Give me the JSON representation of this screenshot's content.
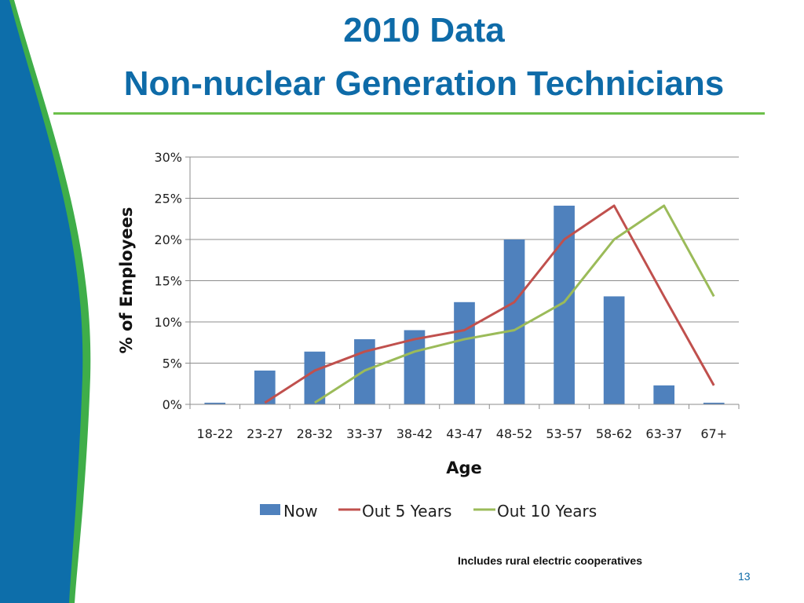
{
  "slide": {
    "title_line1": "2010 Data",
    "title_line2": "Non-nuclear Generation Technicians",
    "footnote": "Includes rural electric cooperatives",
    "page_number": "13",
    "colors": {
      "title": "#0e6ba8",
      "rule": "#6cc04a",
      "wave_blue": "#0d6eaa",
      "wave_green": "#3fae49"
    }
  },
  "chart_data": {
    "type": "bar",
    "xlabel": "Age",
    "ylabel": "% of Employees",
    "ylim": [
      0,
      30
    ],
    "y_ticks": [
      "0%",
      "5%",
      "10%",
      "15%",
      "20%",
      "25%",
      "30%"
    ],
    "categories": [
      "18-22",
      "23-27",
      "28-32",
      "33-37",
      "38-42",
      "43-47",
      "48-52",
      "53-57",
      "58-62",
      "63-37",
      "67+"
    ],
    "series": [
      {
        "name": "Now",
        "type": "bar",
        "color": "#4f81bd",
        "values": [
          0.2,
          4.1,
          6.4,
          7.9,
          9.0,
          12.4,
          20.0,
          24.1,
          13.1,
          2.3,
          0.2
        ]
      },
      {
        "name": "Out 5 Years",
        "type": "line",
        "color": "#c0504d",
        "values": [
          null,
          0.2,
          4.1,
          6.4,
          7.9,
          9.0,
          12.4,
          20.0,
          24.1,
          13.1,
          2.3
        ]
      },
      {
        "name": "Out 10 Years",
        "type": "line",
        "color": "#9bbb59",
        "values": [
          null,
          null,
          0.2,
          4.1,
          6.4,
          7.9,
          9.0,
          12.4,
          20.0,
          24.1,
          13.1
        ]
      }
    ],
    "grid": true,
    "legend_position": "bottom"
  }
}
